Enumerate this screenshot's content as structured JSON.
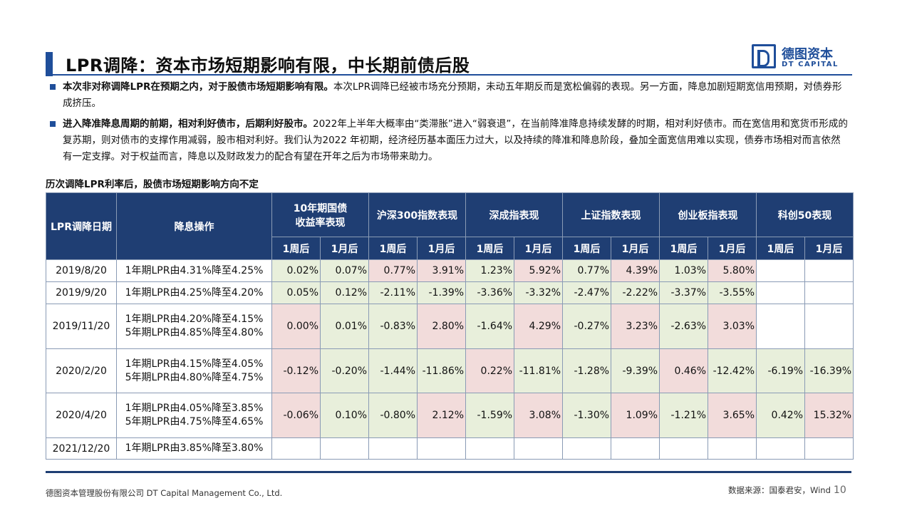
{
  "header": {
    "title": "LPR调降：资本市场短期影响有限，中长期前债后股",
    "logo_cn": "德图资本",
    "logo_en": "DT CAPITAL"
  },
  "paragraphs": [
    {
      "lead": "本次非对称调降LPR在预期之内，对于股债市场短期影响有限。",
      "body": "本次LPR调降已经被市场充分预期，未动五年期反而是宽松偏弱的表现。另一方面，降息加剧短期宽信用预期，对债券形成挤压。"
    },
    {
      "lead": "进入降准降息周期的前期，相对利好债市，后期利好股市。",
      "body": "2022年上半年大概率由“类滞胀”进入“弱衰退”，在当前降准降息持续发酵的时期，相对利好债市。而在宽信用和宽货币形成的复苏期，则对债市的支撑作用减弱，股市相对利好。我们认为2022 年初期，经济经历基本面压力过大，以及持续的降准和降息阶段，叠加全面宽信用难以实现，债券市场相对而言依然有一定支撑。对于权益而言，降息以及财政发力的配合有望在开年之后为市场带来助力。"
    }
  ],
  "table": {
    "title": "历次调降LPR利率后，股债市场短期影响方向不定",
    "col_date": "LPR调降日期",
    "col_op": "降息操作",
    "groups": [
      {
        "line1": "10年期国债",
        "line2": "收益率表现"
      },
      {
        "line1": "沪深300指数表现",
        "line2": ""
      },
      {
        "line1": "深成指表现",
        "line2": ""
      },
      {
        "line1": "上证指数表现",
        "line2": ""
      },
      {
        "line1": "创业板指表现",
        "line2": ""
      },
      {
        "line1": "科创50表现",
        "line2": ""
      }
    ],
    "sub": {
      "week": "1周后",
      "month": "1月后"
    },
    "rows": [
      {
        "date": "2019/8/20",
        "ops": [
          "1年期LPR由4.31%降至4.25%"
        ],
        "cells": [
          "0.02%",
          "0.07%",
          "0.77%",
          "3.91%",
          "1.23%",
          "5.92%",
          "0.77%",
          "4.39%",
          "1.03%",
          "5.80%",
          "",
          ""
        ]
      },
      {
        "date": "2019/9/20",
        "ops": [
          "1年期LPR由4.25%降至4.20%"
        ],
        "cells": [
          "0.05%",
          "0.12%",
          "-2.11%",
          "-1.39%",
          "-3.36%",
          "-3.32%",
          "-2.47%",
          "-2.22%",
          "-3.37%",
          "-3.55%",
          "",
          ""
        ]
      },
      {
        "date": "2019/11/20",
        "ops": [
          "1年期LPR由4.20%降至4.15%",
          "5年期LPR由4.85%降至4.80%"
        ],
        "cells": [
          "0.00%",
          "0.01%",
          "-0.83%",
          "2.80%",
          "-1.64%",
          "4.29%",
          "-0.27%",
          "3.23%",
          "-2.63%",
          "3.03%",
          "",
          ""
        ]
      },
      {
        "date": "2020/2/20",
        "ops": [
          "1年期LPR由4.15%降至4.05%",
          "5年期LPR由4.80%降至4.75%"
        ],
        "cells": [
          "-0.12%",
          "-0.20%",
          "-1.44%",
          "-11.86%",
          "0.22%",
          "-11.81%",
          "-1.28%",
          "-9.39%",
          "0.46%",
          "-12.42%",
          "-6.19%",
          "-16.39%"
        ]
      },
      {
        "date": "2020/4/20",
        "ops": [
          "1年期LPR由4.05%降至3.85%",
          "5年期LPR由4.75%降至4.65%"
        ],
        "cells": [
          "-0.06%",
          "0.10%",
          "-0.80%",
          "2.12%",
          "-1.59%",
          "3.08%",
          "-1.30%",
          "1.09%",
          "-1.21%",
          "3.65%",
          "0.42%",
          "15.32%"
        ]
      },
      {
        "date": "2021/12/20",
        "ops": [
          "1年期LPR由3.85%降至3.80%"
        ],
        "cells": [
          "",
          "",
          "",
          "",
          "",
          "",
          "",
          "",
          "",
          "",
          "",
          ""
        ]
      }
    ],
    "cell_shading": [
      [
        "g",
        "g",
        "r",
        "r",
        "g",
        "r",
        "g",
        "r",
        "g",
        "r",
        "",
        ""
      ],
      [
        "g",
        "g",
        "g",
        "g",
        "g",
        "g",
        "g",
        "g",
        "g",
        "g",
        "",
        ""
      ],
      [
        "r",
        "g",
        "g",
        "r",
        "g",
        "r",
        "g",
        "r",
        "g",
        "r",
        "",
        ""
      ],
      [
        "r",
        "g",
        "g",
        "g",
        "r",
        "g",
        "g",
        "g",
        "r",
        "g",
        "g",
        "g"
      ],
      [
        "r",
        "g",
        "g",
        "r",
        "g",
        "r",
        "g",
        "r",
        "g",
        "r",
        "g",
        "r"
      ],
      [
        "",
        "",
        "",
        "",
        "",
        "",
        "",
        "",
        "",
        "",
        "",
        ""
      ]
    ]
  },
  "footer": {
    "company": "德图资本管理股份有限公司  DT Capital Management  Co., Ltd.",
    "source": "数据来源：国泰君安，Wind",
    "page": "10"
  },
  "colors": {
    "accent": "#1f4e9a",
    "header_fill": "#1f3e73",
    "green_fill": "#e8efdb",
    "red_fill": "#f2dcdb"
  }
}
